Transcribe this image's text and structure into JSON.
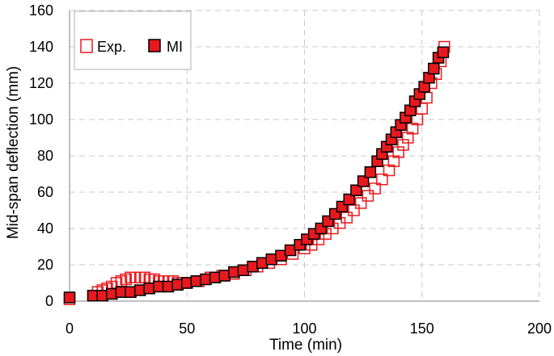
{
  "chart_data": {
    "type": "scatter",
    "xlabel": "Time (min)",
    "ylabel": "Mid-span deflection (mm)",
    "xlim": [
      0,
      200
    ],
    "ylim": [
      0,
      160
    ],
    "xticks": [
      0,
      50,
      100,
      150,
      200
    ],
    "yticks": [
      0,
      20,
      40,
      60,
      80,
      100,
      120,
      140,
      160
    ],
    "grid": true,
    "legend_position": "top-left",
    "series": [
      {
        "name": "Exp.",
        "marker": "open-square",
        "color": "#e8191e",
        "x": [
          0,
          10,
          12,
          14,
          16,
          18,
          20,
          22,
          24,
          26,
          28,
          30,
          32,
          34,
          36,
          38,
          40,
          42,
          44,
          46,
          48,
          50,
          55,
          60,
          65,
          70,
          75,
          80,
          85,
          90,
          95,
          100,
          103,
          106,
          109,
          112,
          115,
          118,
          121,
          124,
          127,
          130,
          133,
          136,
          138,
          140,
          142,
          144,
          146,
          148,
          150,
          152,
          154,
          156,
          158,
          159,
          159.5
        ],
        "y": [
          1,
          3,
          5,
          6,
          7,
          8,
          10,
          11,
          12,
          13,
          13,
          13,
          13,
          12,
          12,
          11,
          11,
          11,
          11,
          10,
          10,
          10,
          11,
          13,
          14,
          15,
          17,
          19,
          21,
          23,
          26,
          29,
          31,
          34,
          37,
          40,
          43,
          46,
          50,
          54,
          58,
          62,
          67,
          72,
          77,
          82,
          86,
          90,
          95,
          100,
          106,
          112,
          120,
          125,
          132,
          137,
          140
        ]
      },
      {
        "name": "MI",
        "marker": "filled-square",
        "color": "#e8191e",
        "x": [
          0,
          10,
          14,
          18,
          22,
          26,
          30,
          34,
          38,
          42,
          46,
          50,
          54,
          58,
          62,
          66,
          70,
          74,
          78,
          82,
          86,
          90,
          94,
          98,
          101,
          104,
          107,
          110,
          113,
          116,
          119,
          122,
          125,
          128,
          131,
          133,
          135,
          137,
          139,
          141,
          143,
          145,
          147,
          149,
          151,
          153,
          155,
          157,
          159
        ],
        "y": [
          2,
          3,
          3,
          4,
          5,
          5,
          6,
          7,
          8,
          8,
          9,
          10,
          11,
          12,
          13,
          14,
          16,
          17,
          19,
          21,
          23,
          25,
          28,
          31,
          34,
          37,
          40,
          44,
          48,
          52,
          56,
          61,
          66,
          71,
          77,
          81,
          85,
          89,
          93,
          97,
          101,
          105,
          110,
          114,
          118,
          123,
          128,
          134,
          137
        ]
      }
    ]
  }
}
